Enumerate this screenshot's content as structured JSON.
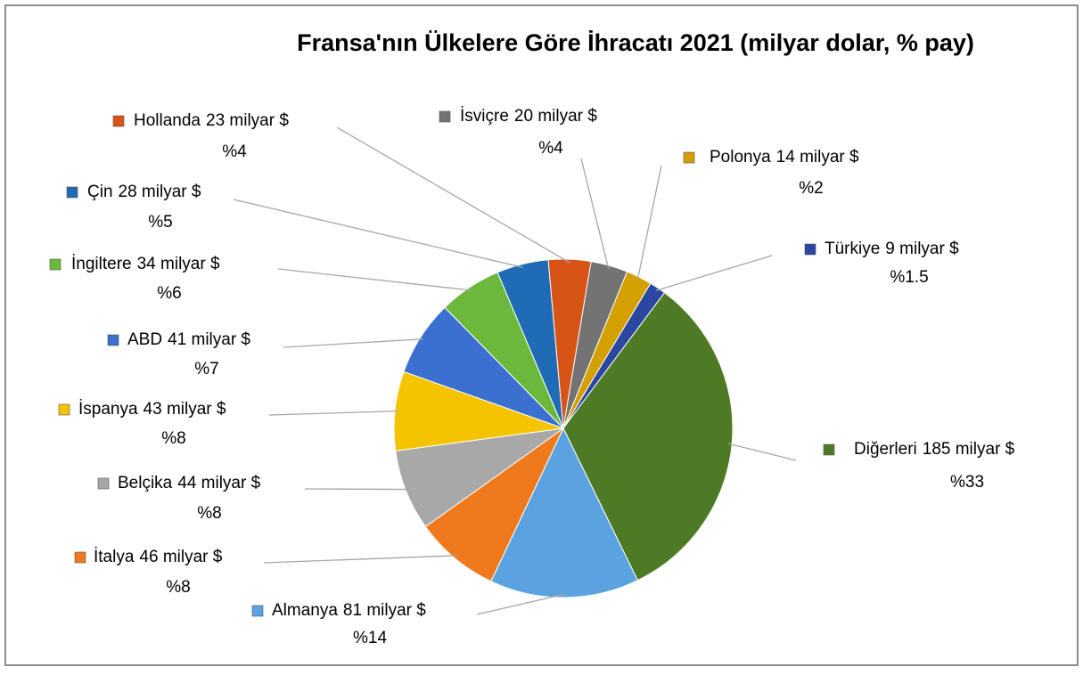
{
  "chart_data": {
    "type": "pie",
    "title": "Fransa'nın Ülkelere Göre İhracatı 2021 (milyar dolar, % pay)",
    "categories": [
      "Türkiye",
      "Diğerleri",
      "Almanya",
      "İtalya",
      "Belçika",
      "İspanya",
      "ABD",
      "İngiltere",
      "Çin",
      "Hollanda",
      "İsviçre",
      "Polonya"
    ],
    "values": [
      9,
      185,
      81,
      46,
      44,
      43,
      41,
      34,
      28,
      23,
      20,
      14
    ],
    "value_labels": [
      "9 milyar $",
      "185 milyar $",
      "81 milyar $",
      "46 milyar $",
      "44 milyar $",
      "43 milyar $",
      "41 milyar $",
      "34 milyar $",
      "28 milyar $",
      "23 milyar $",
      "20 milyar $",
      "14 milyar $"
    ],
    "percentages": [
      1.5,
      33,
      14,
      8,
      8,
      8,
      7,
      6,
      5,
      4,
      4,
      2
    ],
    "percentage_labels": [
      "%1.5",
      "%33",
      "%14",
      "%8",
      "%8",
      "%8",
      "%7",
      "%6",
      "%5",
      "%4",
      "%4",
      "%2"
    ],
    "colors": [
      "#2a48a2",
      "#4e7a25",
      "#5ba3e0",
      "#ef7a1d",
      "#a8a8a8",
      "#f5c400",
      "#3b6fd0",
      "#6cb83b",
      "#1f6bb5",
      "#d85316",
      "#737373",
      "#d4a000"
    ]
  }
}
